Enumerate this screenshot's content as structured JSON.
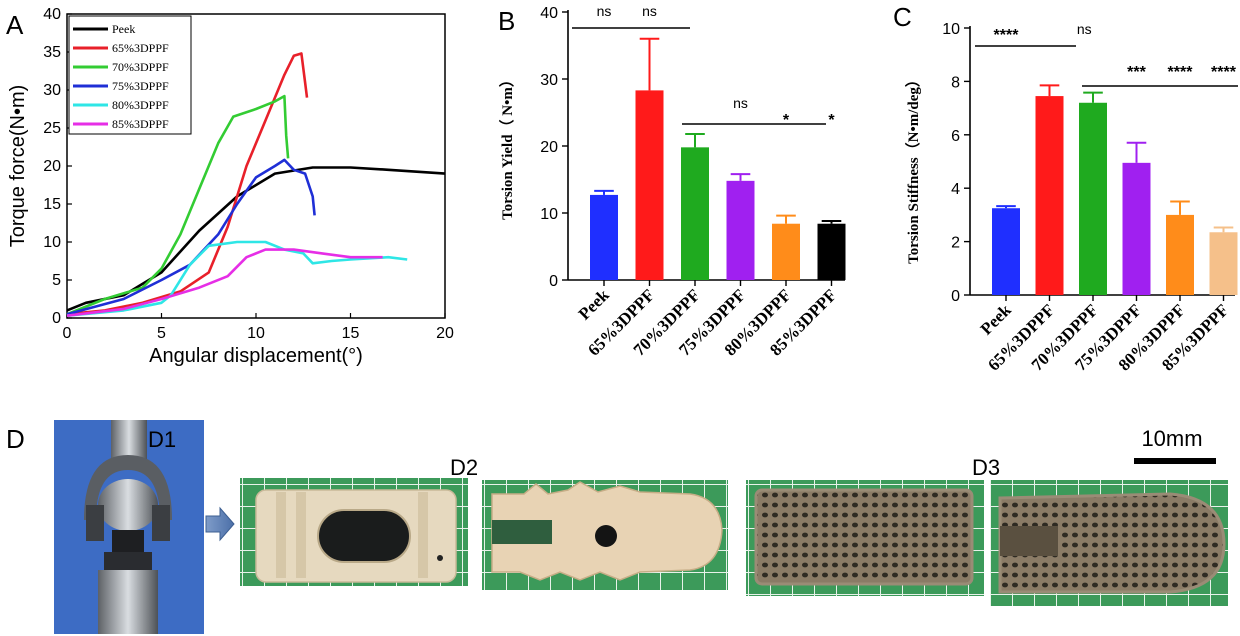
{
  "panels": {
    "A": "A",
    "B": "B",
    "C": "C",
    "D": "D",
    "D1": "D1",
    "D2": "D2",
    "D3": "D3"
  },
  "colors": {
    "Peek": "#000000",
    "65%3DPPF": "#e8202a",
    "70%3DPPF": "#33cc33",
    "75%3DPPF": "#1f2fd6",
    "80%3DPPF": "#2ee6e6",
    "85%3DPPF": "#e62ee6",
    "bar_Peek": "#1f2fff",
    "bar_65": "#ff1a1a",
    "bar_70": "#1faa1f",
    "bar_75": "#a020f0",
    "bar_80": "#ff8c1a",
    "bar_85B": "#000000",
    "bar_85C": "#f5c08a"
  },
  "chart_data": [
    {
      "type": "line",
      "panel": "A",
      "xlabel": "Angular displacement(°)",
      "ylabel": "Torque force(N•m)",
      "xlim": [
        0,
        20
      ],
      "ylim": [
        0,
        40
      ],
      "xticks": [
        0,
        5,
        10,
        15,
        20
      ],
      "yticks": [
        0,
        5,
        10,
        15,
        20,
        25,
        30,
        35,
        40
      ],
      "legend_position": "top-left",
      "series": [
        {
          "name": "Peek",
          "points": [
            [
              0,
              1
            ],
            [
              1,
              2
            ],
            [
              3,
              3
            ],
            [
              5,
              6
            ],
            [
              7,
              11.5
            ],
            [
              9,
              16
            ],
            [
              11,
              19
            ],
            [
              13,
              19.8
            ],
            [
              15,
              19.8
            ],
            [
              17,
              19.5
            ],
            [
              20,
              19
            ]
          ]
        },
        {
          "name": "65%3DPPF",
          "points": [
            [
              0,
              0.5
            ],
            [
              2,
              1
            ],
            [
              4,
              2
            ],
            [
              6,
              3.5
            ],
            [
              7.5,
              6
            ],
            [
              8.5,
              12
            ],
            [
              9.5,
              20
            ],
            [
              10.5,
              26
            ],
            [
              11.5,
              32
            ],
            [
              12,
              34.5
            ],
            [
              12.4,
              34.8
            ],
            [
              12.6,
              31
            ],
            [
              12.7,
              29
            ]
          ]
        },
        {
          "name": "70%3DPPF",
          "points": [
            [
              0,
              0.5
            ],
            [
              2,
              2.5
            ],
            [
              4,
              4
            ],
            [
              5,
              6.5
            ],
            [
              6,
              11
            ],
            [
              7,
              17
            ],
            [
              8,
              23
            ],
            [
              8.8,
              26.5
            ],
            [
              10,
              27.5
            ],
            [
              11,
              28.5
            ],
            [
              11.5,
              29.2
            ],
            [
              11.6,
              24
            ],
            [
              11.7,
              21
            ]
          ]
        },
        {
          "name": "75%3DPPF",
          "points": [
            [
              0,
              0.5
            ],
            [
              3,
              2.5
            ],
            [
              5,
              5
            ],
            [
              6.5,
              7
            ],
            [
              8,
              11
            ],
            [
              9,
              15
            ],
            [
              10,
              18.5
            ],
            [
              11,
              20
            ],
            [
              11.5,
              20.8
            ],
            [
              12,
              19.5
            ],
            [
              12.6,
              19
            ],
            [
              13,
              16
            ],
            [
              13.1,
              13.5
            ]
          ]
        },
        {
          "name": "80%3DPPF",
          "points": [
            [
              0,
              0.3
            ],
            [
              3,
              1
            ],
            [
              5,
              2
            ],
            [
              5.5,
              3
            ],
            [
              6.5,
              7
            ],
            [
              7.5,
              9.5
            ],
            [
              9,
              10
            ],
            [
              10.5,
              10
            ],
            [
              11.5,
              9
            ],
            [
              12.5,
              8.5
            ],
            [
              13,
              7.2
            ],
            [
              14,
              7.5
            ],
            [
              15,
              7.7
            ],
            [
              17,
              8
            ],
            [
              18,
              7.7
            ]
          ]
        },
        {
          "name": "85%3DPPF",
          "points": [
            [
              0,
              0.3
            ],
            [
              3,
              1.2
            ],
            [
              5,
              2.5
            ],
            [
              7,
              4
            ],
            [
              8.5,
              5.5
            ],
            [
              9.5,
              8
            ],
            [
              10.5,
              9
            ],
            [
              12,
              9
            ],
            [
              13.5,
              8.5
            ],
            [
              15,
              8
            ],
            [
              16.7,
              8
            ]
          ]
        }
      ]
    },
    {
      "type": "bar",
      "panel": "B",
      "ylabel": "Torsion Yield（ N•m）",
      "categories": [
        "Peek",
        "65%3DPPF",
        "70%3DPPF",
        "75%3DPPF",
        "80%3DPPF",
        "85%3DPPF"
      ],
      "values": [
        12.7,
        28.3,
        19.8,
        14.8,
        8.4,
        8.4
      ],
      "errors": [
        0.6,
        7.7,
        2.0,
        1.0,
        1.2,
        0.4
      ],
      "ylim": [
        0,
        40
      ],
      "yticks": [
        0,
        10,
        20,
        30,
        40
      ],
      "significance": [
        {
          "label": "ns",
          "over": 0
        },
        {
          "label": "ns",
          "over": 1
        },
        {
          "label": "ns",
          "over": 3
        },
        {
          "label": "*",
          "over": 4
        },
        {
          "label": "*",
          "over": 5
        }
      ]
    },
    {
      "type": "bar",
      "panel": "C",
      "ylabel": "Torsion Stiffness（N•m/deg）",
      "categories": [
        "Peek",
        "65%3DPPF",
        "70%3DPPF",
        "75%3DPPF",
        "80%3DPPF",
        "85%3DPPF"
      ],
      "values": [
        3.25,
        7.45,
        7.2,
        4.95,
        3.0,
        2.35
      ],
      "errors": [
        0.08,
        0.4,
        0.38,
        0.75,
        0.5,
        0.18
      ],
      "ylim": [
        0,
        10
      ],
      "yticks": [
        0,
        2,
        4,
        6,
        8,
        10
      ],
      "significance": [
        {
          "label": "****",
          "over": 0
        },
        {
          "label": "ns",
          "over": 1.8
        },
        {
          "label": "***",
          "over": 3
        },
        {
          "label": "****",
          "over": 4
        },
        {
          "label": "****",
          "over": 5
        }
      ]
    }
  ],
  "photos": {
    "scale_bar_label": "10mm"
  }
}
